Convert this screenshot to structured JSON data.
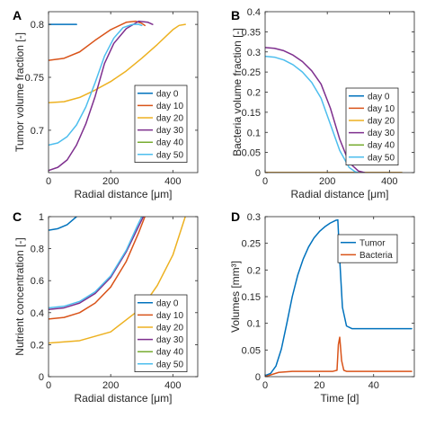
{
  "chart_data": [
    {
      "panel_label": "A",
      "type": "line",
      "xlabel": "Radial distance [μm]",
      "ylabel": "Tumor volume fraction [-]",
      "xlim": [
        0,
        480
      ],
      "ylim": [
        0.66,
        0.812
      ],
      "xticks": [
        0,
        200,
        400
      ],
      "yticks": [
        0.7,
        0.75,
        0.8
      ],
      "ytick_labels": [
        "0.7",
        "0.75",
        "0.8"
      ],
      "legend_position": "bottom-right",
      "series": [
        {
          "name": "day 0",
          "color": "#0072BD",
          "x": [
            0,
            30,
            60,
            90
          ],
          "y": [
            0.8,
            0.8,
            0.8,
            0.8
          ]
        },
        {
          "name": "day 10",
          "color": "#D95319",
          "x": [
            0,
            50,
            100,
            150,
            200,
            250,
            280,
            300,
            310
          ],
          "y": [
            0.766,
            0.768,
            0.774,
            0.785,
            0.795,
            0.802,
            0.803,
            0.801,
            0.799
          ]
        },
        {
          "name": "day 20",
          "color": "#EDB120",
          "x": [
            0,
            50,
            100,
            150,
            200,
            250,
            300,
            350,
            400,
            420,
            440
          ],
          "y": [
            0.726,
            0.727,
            0.731,
            0.738,
            0.746,
            0.756,
            0.768,
            0.781,
            0.795,
            0.799,
            0.8
          ]
        },
        {
          "name": "day 30",
          "color": "#7E2F8E",
          "x": [
            0,
            30,
            60,
            90,
            120,
            150,
            180,
            210,
            250,
            290,
            320,
            335
          ],
          "y": [
            0.662,
            0.665,
            0.672,
            0.686,
            0.706,
            0.732,
            0.763,
            0.782,
            0.796,
            0.803,
            0.802,
            0.8
          ]
        },
        {
          "name": "day 40",
          "color": "#77AC30",
          "x": [],
          "y": []
        },
        {
          "name": "day 50",
          "color": "#4DBEEE",
          "x": [
            0,
            30,
            60,
            90,
            120,
            150,
            180,
            210,
            240,
            270,
            290,
            300
          ],
          "y": [
            0.686,
            0.688,
            0.694,
            0.705,
            0.722,
            0.745,
            0.77,
            0.787,
            0.797,
            0.8,
            0.8,
            0.799
          ]
        }
      ]
    },
    {
      "panel_label": "B",
      "type": "line",
      "xlabel": "Radial distance [μm]",
      "ylabel": "Bacteria volume fraction [-]",
      "xlim": [
        0,
        480
      ],
      "ylim": [
        0,
        0.4
      ],
      "xticks": [
        0,
        200,
        400
      ],
      "yticks": [
        0,
        0.05,
        0.1,
        0.15,
        0.2,
        0.25,
        0.3,
        0.35,
        0.4
      ],
      "ytick_labels": [
        "0",
        "0.05",
        "0.1",
        "0.15",
        "0.2",
        "0.25",
        "0.3",
        "0.35",
        "0.4"
      ],
      "legend_position": "right",
      "series": [
        {
          "name": "day 0",
          "color": "#0072BD",
          "x": [
            0,
            440
          ],
          "y": [
            0,
            0
          ]
        },
        {
          "name": "day 10",
          "color": "#D95319",
          "x": [
            0,
            440
          ],
          "y": [
            0,
            0
          ]
        },
        {
          "name": "day 20",
          "color": "#EDB120",
          "x": [
            0,
            440
          ],
          "y": [
            0,
            0
          ]
        },
        {
          "name": "day 30",
          "color": "#7E2F8E",
          "x": [
            0,
            30,
            60,
            90,
            120,
            150,
            180,
            210,
            240,
            270,
            300,
            320
          ],
          "y": [
            0.311,
            0.309,
            0.303,
            0.292,
            0.276,
            0.253,
            0.22,
            0.16,
            0.083,
            0.025,
            0.004,
            0
          ]
        },
        {
          "name": "day 40",
          "color": "#77AC30",
          "x": [],
          "y": []
        },
        {
          "name": "day 50",
          "color": "#4DBEEE",
          "x": [
            0,
            30,
            60,
            90,
            120,
            150,
            180,
            210,
            240,
            270,
            290,
            300
          ],
          "y": [
            0.289,
            0.287,
            0.28,
            0.268,
            0.25,
            0.224,
            0.185,
            0.12,
            0.055,
            0.013,
            0.002,
            0
          ]
        }
      ]
    },
    {
      "panel_label": "C",
      "type": "line",
      "xlabel": "Radial distance [μm]",
      "ylabel": "Nutrient concentration [-]",
      "xlim": [
        0,
        480
      ],
      "ylim": [
        0,
        1
      ],
      "xticks": [
        0,
        200,
        400
      ],
      "yticks": [
        0,
        0.2,
        0.4,
        0.6,
        0.8,
        1
      ],
      "ytick_labels": [
        "0",
        "0.2",
        "0.4",
        "0.6",
        "0.8",
        "1"
      ],
      "legend_position": "bottom-right",
      "series": [
        {
          "name": "day 0",
          "color": "#0072BD",
          "x": [
            0,
            30,
            60,
            90
          ],
          "y": [
            0.915,
            0.925,
            0.95,
            1
          ]
        },
        {
          "name": "day 10",
          "color": "#D95319",
          "x": [
            0,
            50,
            100,
            150,
            200,
            250,
            290,
            310
          ],
          "y": [
            0.36,
            0.37,
            0.4,
            0.46,
            0.56,
            0.72,
            0.9,
            1
          ]
        },
        {
          "name": "day 20",
          "color": "#EDB120",
          "x": [
            0,
            100,
            200,
            300,
            350,
            400,
            440
          ],
          "y": [
            0.21,
            0.225,
            0.28,
            0.43,
            0.57,
            0.76,
            1
          ]
        },
        {
          "name": "day 30",
          "color": "#7E2F8E",
          "x": [
            0,
            50,
            100,
            150,
            200,
            250,
            290,
            305
          ],
          "y": [
            0.42,
            0.43,
            0.46,
            0.52,
            0.62,
            0.78,
            0.94,
            1
          ]
        },
        {
          "name": "day 40",
          "color": "#77AC30",
          "x": [],
          "y": []
        },
        {
          "name": "day 50",
          "color": "#4DBEEE",
          "x": [
            0,
            50,
            100,
            150,
            200,
            250,
            285,
            300
          ],
          "y": [
            0.43,
            0.44,
            0.47,
            0.53,
            0.63,
            0.79,
            0.94,
            1
          ]
        }
      ]
    },
    {
      "panel_label": "D",
      "type": "line",
      "xlabel": "Time [d]",
      "ylabel": "Volumes [mm³]",
      "xlim": [
        0,
        55
      ],
      "ylim": [
        0,
        0.3
      ],
      "xticks": [
        0,
        20,
        40
      ],
      "yticks": [
        0,
        0.05,
        0.1,
        0.15,
        0.2,
        0.25,
        0.3
      ],
      "ytick_labels": [
        "0",
        "0.05",
        "0.1",
        "0.15",
        "0.2",
        "0.25",
        "0.3"
      ],
      "legend_position": "top-right",
      "series": [
        {
          "name": "Tumor",
          "color": "#0072BD",
          "x": [
            0,
            2,
            4,
            6,
            8,
            10,
            12,
            14,
            16,
            18,
            20,
            22,
            24,
            26,
            26.8,
            27.5,
            28.5,
            30,
            32,
            36,
            40,
            45,
            50,
            54
          ],
          "y": [
            0.002,
            0.006,
            0.02,
            0.052,
            0.1,
            0.15,
            0.19,
            0.22,
            0.243,
            0.26,
            0.272,
            0.281,
            0.288,
            0.293,
            0.294,
            0.22,
            0.13,
            0.095,
            0.09,
            0.09,
            0.09,
            0.09,
            0.09,
            0.09
          ]
        },
        {
          "name": "Bacteria",
          "color": "#D95319",
          "x": [
            0,
            5,
            10,
            15,
            20,
            25,
            26.5,
            27,
            27.5,
            28.2,
            29,
            30,
            35,
            40,
            45,
            50,
            54
          ],
          "y": [
            0,
            0.008,
            0.01,
            0.01,
            0.01,
            0.01,
            0.012,
            0.06,
            0.074,
            0.03,
            0.012,
            0.01,
            0.01,
            0.01,
            0.01,
            0.01,
            0.01
          ]
        }
      ]
    }
  ]
}
